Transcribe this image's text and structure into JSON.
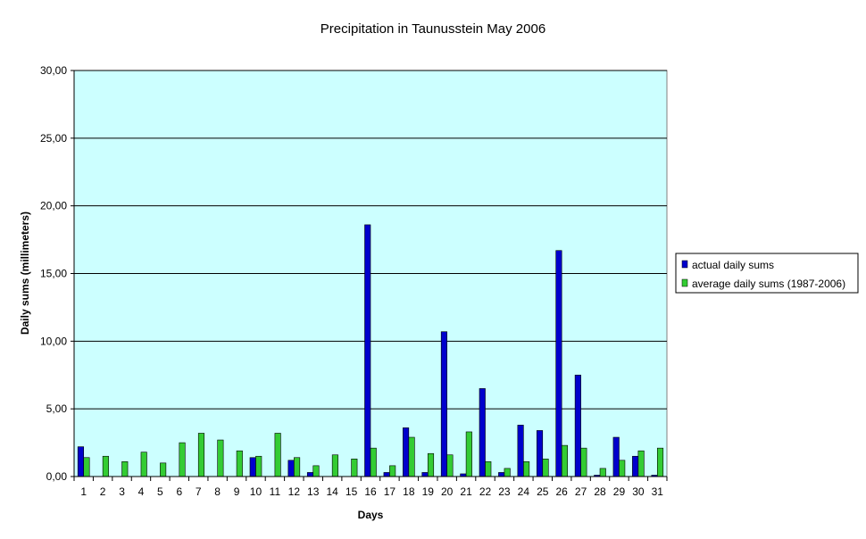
{
  "chart_data": {
    "type": "bar",
    "title": "Precipitation in Taunusstein   May  2006",
    "xlabel": "Days",
    "ylabel": "Daily sums  (millimeters)",
    "ylim": [
      0,
      30
    ],
    "yticks": [
      0,
      5,
      10,
      15,
      20,
      25,
      30
    ],
    "ytick_labels": [
      "0,00",
      "5,00",
      "10,00",
      "15,00",
      "20,00",
      "25,00",
      "30,00"
    ],
    "grid": true,
    "legend_position": "right",
    "categories": [
      "1",
      "2",
      "3",
      "4",
      "5",
      "6",
      "7",
      "8",
      "9",
      "10",
      "11",
      "12",
      "13",
      "14",
      "15",
      "16",
      "17",
      "18",
      "19",
      "20",
      "21",
      "22",
      "23",
      "24",
      "25",
      "26",
      "27",
      "28",
      "29",
      "30",
      "31"
    ],
    "series": [
      {
        "name": "actual daily sums",
        "color": "#0000cc",
        "values": [
          2.2,
          0,
          0,
          0,
          0,
          0,
          0,
          0,
          0,
          1.4,
          0,
          1.2,
          0.3,
          0,
          0,
          18.6,
          0.3,
          3.6,
          0.3,
          10.7,
          0.2,
          6.5,
          0.3,
          3.8,
          3.4,
          16.7,
          7.5,
          0.1,
          2.9,
          1.5,
          0.1
        ]
      },
      {
        "name": "average daily sums (1987-2006)",
        "color": "#33cc33",
        "values": [
          1.4,
          1.5,
          1.1,
          1.8,
          1.0,
          2.5,
          3.2,
          2.7,
          1.9,
          1.5,
          3.2,
          1.4,
          0.8,
          1.6,
          1.3,
          2.1,
          0.8,
          2.9,
          1.7,
          1.6,
          3.3,
          1.1,
          0.6,
          1.1,
          1.3,
          2.3,
          2.1,
          0.6,
          1.2,
          1.9,
          2.1
        ]
      }
    ]
  }
}
